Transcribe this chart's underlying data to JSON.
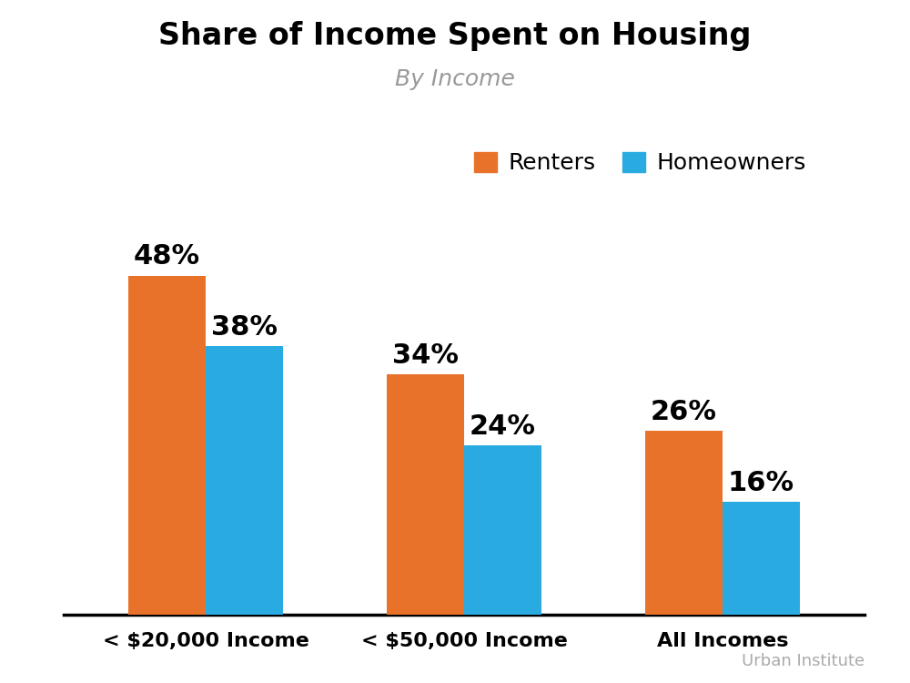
{
  "title": "Share of Income Spent on Housing",
  "subtitle": "By Income",
  "categories": [
    "< $20,000 Income",
    "< $50,000 Income",
    "All Incomes"
  ],
  "renters": [
    48,
    34,
    26
  ],
  "homeowners": [
    38,
    24,
    16
  ],
  "renter_color": "#E8722A",
  "homeowner_color": "#29ABE2",
  "title_fontsize": 24,
  "subtitle_fontsize": 18,
  "label_fontsize": 22,
  "tick_fontsize": 16,
  "legend_fontsize": 18,
  "bar_width": 0.3,
  "background_color": "#FFFFFF",
  "text_color": "#000000",
  "subtitle_color": "#999999",
  "source_text": "Urban Institute",
  "source_color": "#AAAAAA",
  "source_fontsize": 13,
  "ylim": [
    0,
    58
  ]
}
